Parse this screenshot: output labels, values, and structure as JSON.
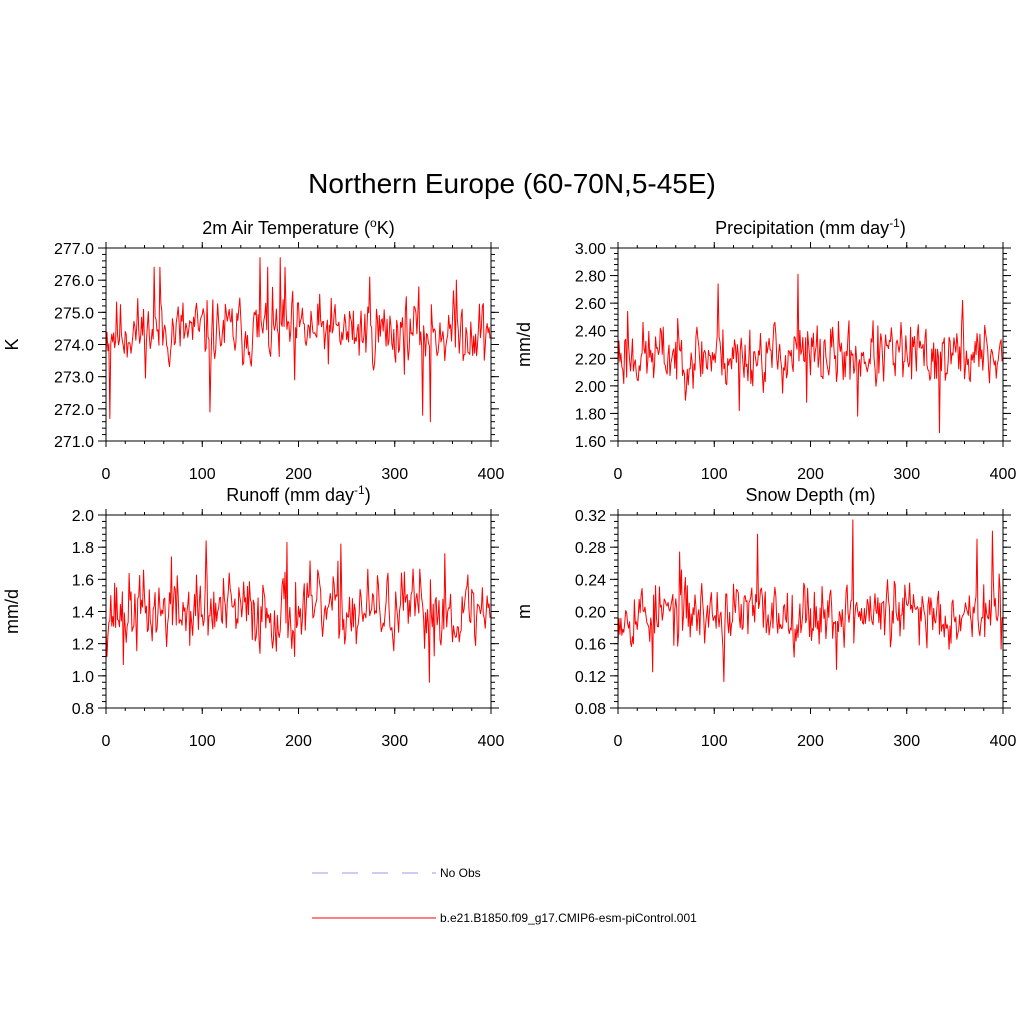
{
  "chart_data": {
    "suptitle": "Northern Europe (60-70N,5-45E)",
    "panels": [
      {
        "type": "line",
        "title": "2m Air Temperature (",
        "title_sup": "o",
        "title_tail": "K)",
        "ylabel": "K",
        "xlim": [
          0,
          400
        ],
        "ylim": [
          271.0,
          277.0
        ],
        "xticks": [
          "0",
          "100",
          "200",
          "300",
          "400"
        ],
        "yticks": [
          "271.0",
          "272.0",
          "273.0",
          "274.0",
          "275.0",
          "276.0",
          "277.0"
        ],
        "mean": 274.4,
        "amp": 0.62,
        "seed": 11,
        "spikes": [
          [
            4,
            271.7
          ],
          [
            50,
            276.4
          ],
          [
            56,
            276.4
          ],
          [
            108,
            271.9
          ],
          [
            160,
            276.7
          ],
          [
            168,
            276.4
          ],
          [
            181,
            276.7
          ],
          [
            186,
            276.4
          ],
          [
            196,
            272.9
          ],
          [
            274,
            276.1
          ],
          [
            329,
            271.8
          ],
          [
            337,
            271.6
          ],
          [
            364,
            276.0
          ]
        ]
      },
      {
        "type": "line",
        "title": "Precipitation (mm day",
        "title_sup": "-1",
        "title_tail": ")",
        "ylabel": "mm/d",
        "xlim": [
          0,
          400
        ],
        "ylim": [
          1.6,
          3.0
        ],
        "xticks": [
          "0",
          "100",
          "200",
          "300",
          "400"
        ],
        "yticks": [
          "1.60",
          "1.80",
          "2.00",
          "2.20",
          "2.40",
          "2.60",
          "2.80",
          "3.00"
        ],
        "mean": 2.22,
        "amp": 0.14,
        "seed": 23,
        "spikes": [
          [
            10,
            2.54
          ],
          [
            104,
            2.74
          ],
          [
            126,
            1.82
          ],
          [
            187,
            2.81
          ],
          [
            196,
            1.88
          ],
          [
            249,
            1.78
          ],
          [
            334,
            1.66
          ],
          [
            358,
            2.62
          ]
        ]
      },
      {
        "type": "line",
        "title": "Runoff (mm day",
        "title_sup": "-1",
        "title_tail": ")",
        "ylabel": "mm/d",
        "xlim": [
          0,
          400
        ],
        "ylim": [
          0.8,
          2.0
        ],
        "xticks": [
          "0",
          "100",
          "200",
          "300",
          "400"
        ],
        "yticks": [
          "0.8",
          "1.0",
          "1.2",
          "1.4",
          "1.6",
          "1.8",
          "2.0"
        ],
        "mean": 1.4,
        "amp": 0.14,
        "seed": 37,
        "spikes": [
          [
            18,
            1.07
          ],
          [
            68,
            1.74
          ],
          [
            104,
            1.84
          ],
          [
            188,
            1.83
          ],
          [
            196,
            1.12
          ],
          [
            244,
            1.82
          ],
          [
            336,
            0.96
          ],
          [
            352,
            1.76
          ]
        ]
      },
      {
        "type": "line",
        "title": "Snow Depth (m)",
        "title_sup": "",
        "title_tail": "",
        "ylabel": "m",
        "xlim": [
          0,
          400
        ],
        "ylim": [
          0.08,
          0.32
        ],
        "xticks": [
          "0",
          "100",
          "200",
          "300",
          "400"
        ],
        "yticks": [
          "0.08",
          "0.12",
          "0.16",
          "0.20",
          "0.24",
          "0.28",
          "0.32"
        ],
        "mean": 0.198,
        "amp": 0.024,
        "seed": 53,
        "spikes": [
          [
            36,
            0.125
          ],
          [
            64,
            0.274
          ],
          [
            110,
            0.113
          ],
          [
            145,
            0.296
          ],
          [
            227,
            0.128
          ],
          [
            244,
            0.314
          ],
          [
            373,
            0.29
          ],
          [
            389,
            0.3
          ]
        ]
      }
    ],
    "legend": [
      {
        "label": "No Obs",
        "color": "#9999ee",
        "style": "dashed"
      },
      {
        "label": "b.e21.B1850.f09_g17.CMIP6-esm-piControl.001",
        "color": "#ff0000",
        "style": "solid"
      }
    ]
  }
}
